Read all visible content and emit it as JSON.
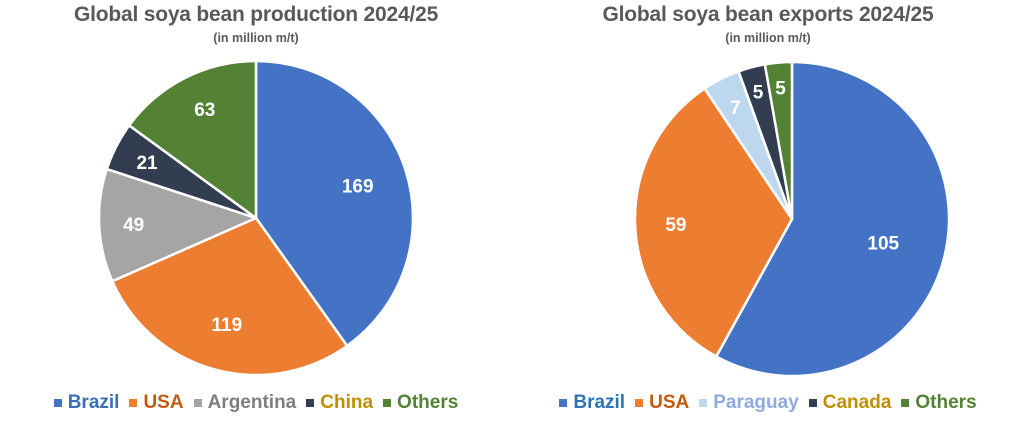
{
  "chart_data": [
    {
      "type": "pie",
      "title": "Global soya bean production 2024/25",
      "subtitle": "(in million m/t)",
      "categories": [
        "Brazil",
        "USA",
        "Argentina",
        "China",
        "Others"
      ],
      "values": [
        169,
        119,
        49,
        21,
        63
      ],
      "colors": [
        "#4472C4",
        "#ED7D31",
        "#A5A5A5",
        "#323E50",
        "#548235"
      ],
      "legend_text_colors": [
        "#3B6FB6",
        "#C55A11",
        "#7F7F7F",
        "#BF9000",
        "#548235"
      ],
      "data_labels": true,
      "legend_position": "bottom",
      "start_angle": 0,
      "direction": "clockwise"
    },
    {
      "type": "pie",
      "title": "Global soya bean exports 2024/25",
      "subtitle": "(in million m/t)",
      "categories": [
        "Brazil",
        "USA",
        "Paraguay",
        "Canada",
        "Others"
      ],
      "values": [
        105,
        59,
        7,
        5,
        5
      ],
      "colors": [
        "#4472C4",
        "#ED7D31",
        "#BDD7EE",
        "#323E50",
        "#548235"
      ],
      "legend_text_colors": [
        "#2E75B6",
        "#C55A11",
        "#8FAADC",
        "#BF9000",
        "#548235"
      ],
      "data_labels": true,
      "legend_position": "bottom",
      "start_angle": 0,
      "direction": "clockwise"
    }
  ],
  "left": {
    "title": "Global soya bean production 2024/25",
    "subtitle": "(in million m/t)",
    "legend": [
      {
        "label": "Brazil"
      },
      {
        "label": "USA"
      },
      {
        "label": "Argentina"
      },
      {
        "label": "China"
      },
      {
        "label": "Others"
      }
    ]
  },
  "right": {
    "title": "Global soya bean exports 2024/25",
    "subtitle": "(in million m/t)",
    "legend": [
      {
        "label": "Brazil"
      },
      {
        "label": "USA"
      },
      {
        "label": "Paraguay"
      },
      {
        "label": "Canada"
      },
      {
        "label": "Others"
      }
    ]
  }
}
